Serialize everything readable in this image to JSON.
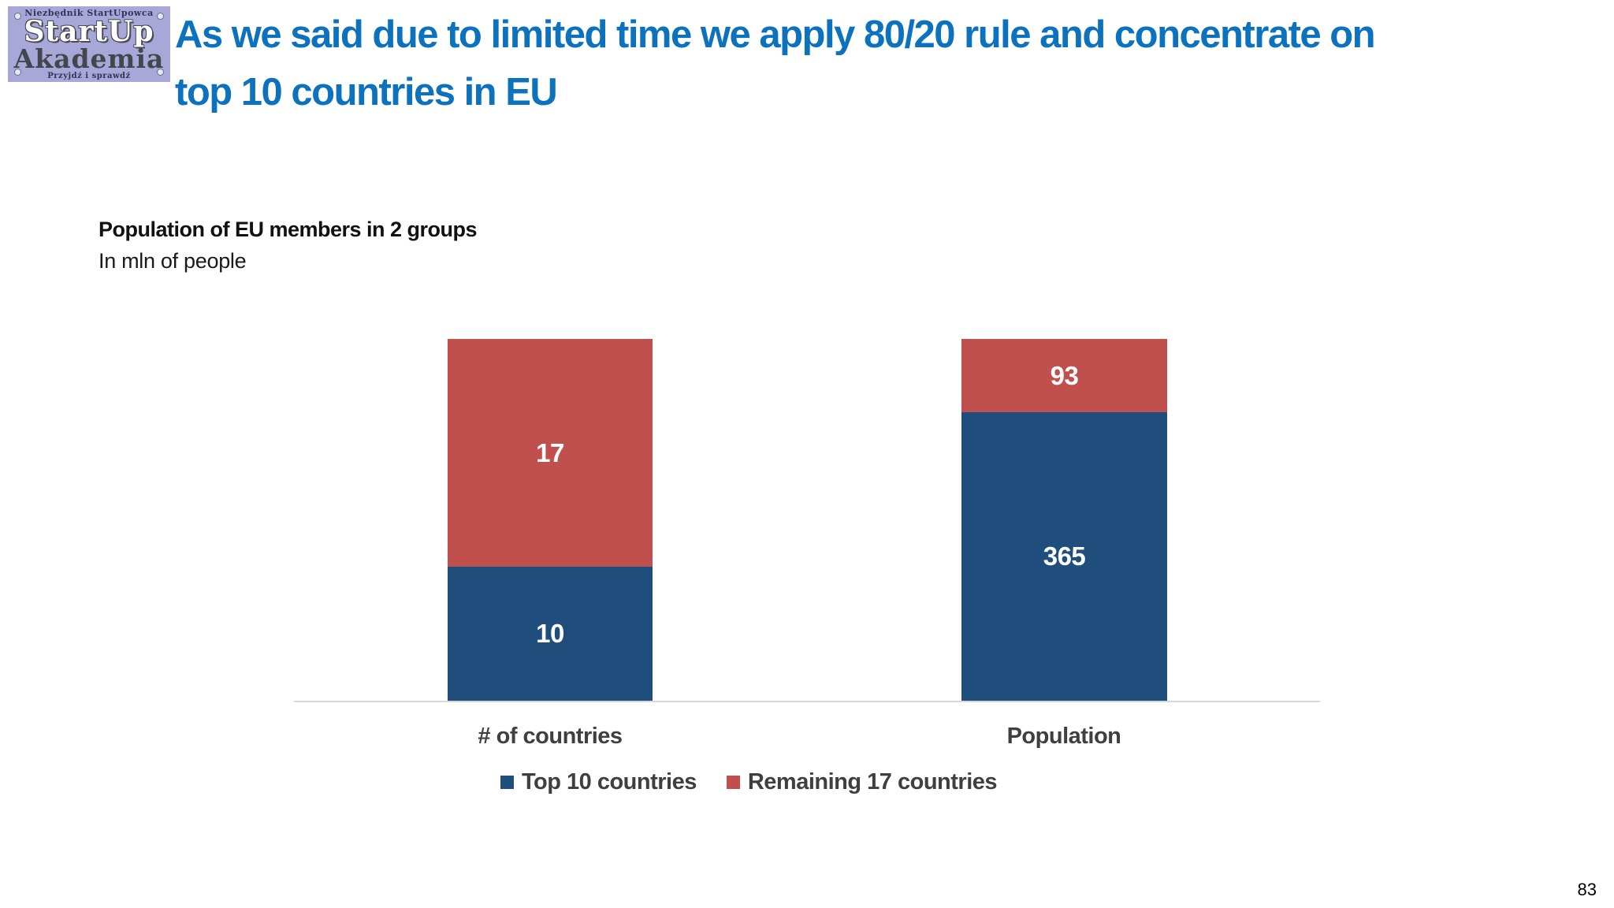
{
  "slide": {
    "page_number": "83"
  },
  "logo": {
    "tagline_top": "Niezbędnik StartUpowca",
    "name_line1": "StartUp",
    "name_line2": "Akademia",
    "tagline_bottom": "Przyjdź i sprawdź",
    "background_color": "#a7a7d8"
  },
  "header": {
    "title_line1": "As we said due to limited time we apply 80/20 rule and concentrate on",
    "title_line2": "top 10 countries in EU",
    "title_color": "#0d72bd"
  },
  "chart_data": {
    "type": "bar",
    "subtype": "100%-stacked-column",
    "title": "Population of EU members in 2 groups",
    "subtitle": "In mln of people",
    "categories": [
      "# of countries",
      "Population"
    ],
    "series": [
      {
        "name": "Top 10 countries",
        "color": "#1f4e7c",
        "stack_position": "bottom",
        "values": [
          10,
          365
        ]
      },
      {
        "name": "Remaining 17 countries",
        "color": "#c0504d",
        "stack_position": "top",
        "values": [
          17,
          93
        ]
      }
    ],
    "value_labels": {
      "placement": "inside-center",
      "color": "#ffffff"
    },
    "legend_position": "bottom",
    "axis_line_color": "#d8d8d8",
    "gridlines": false,
    "ylabel": "",
    "xlabel": ""
  }
}
